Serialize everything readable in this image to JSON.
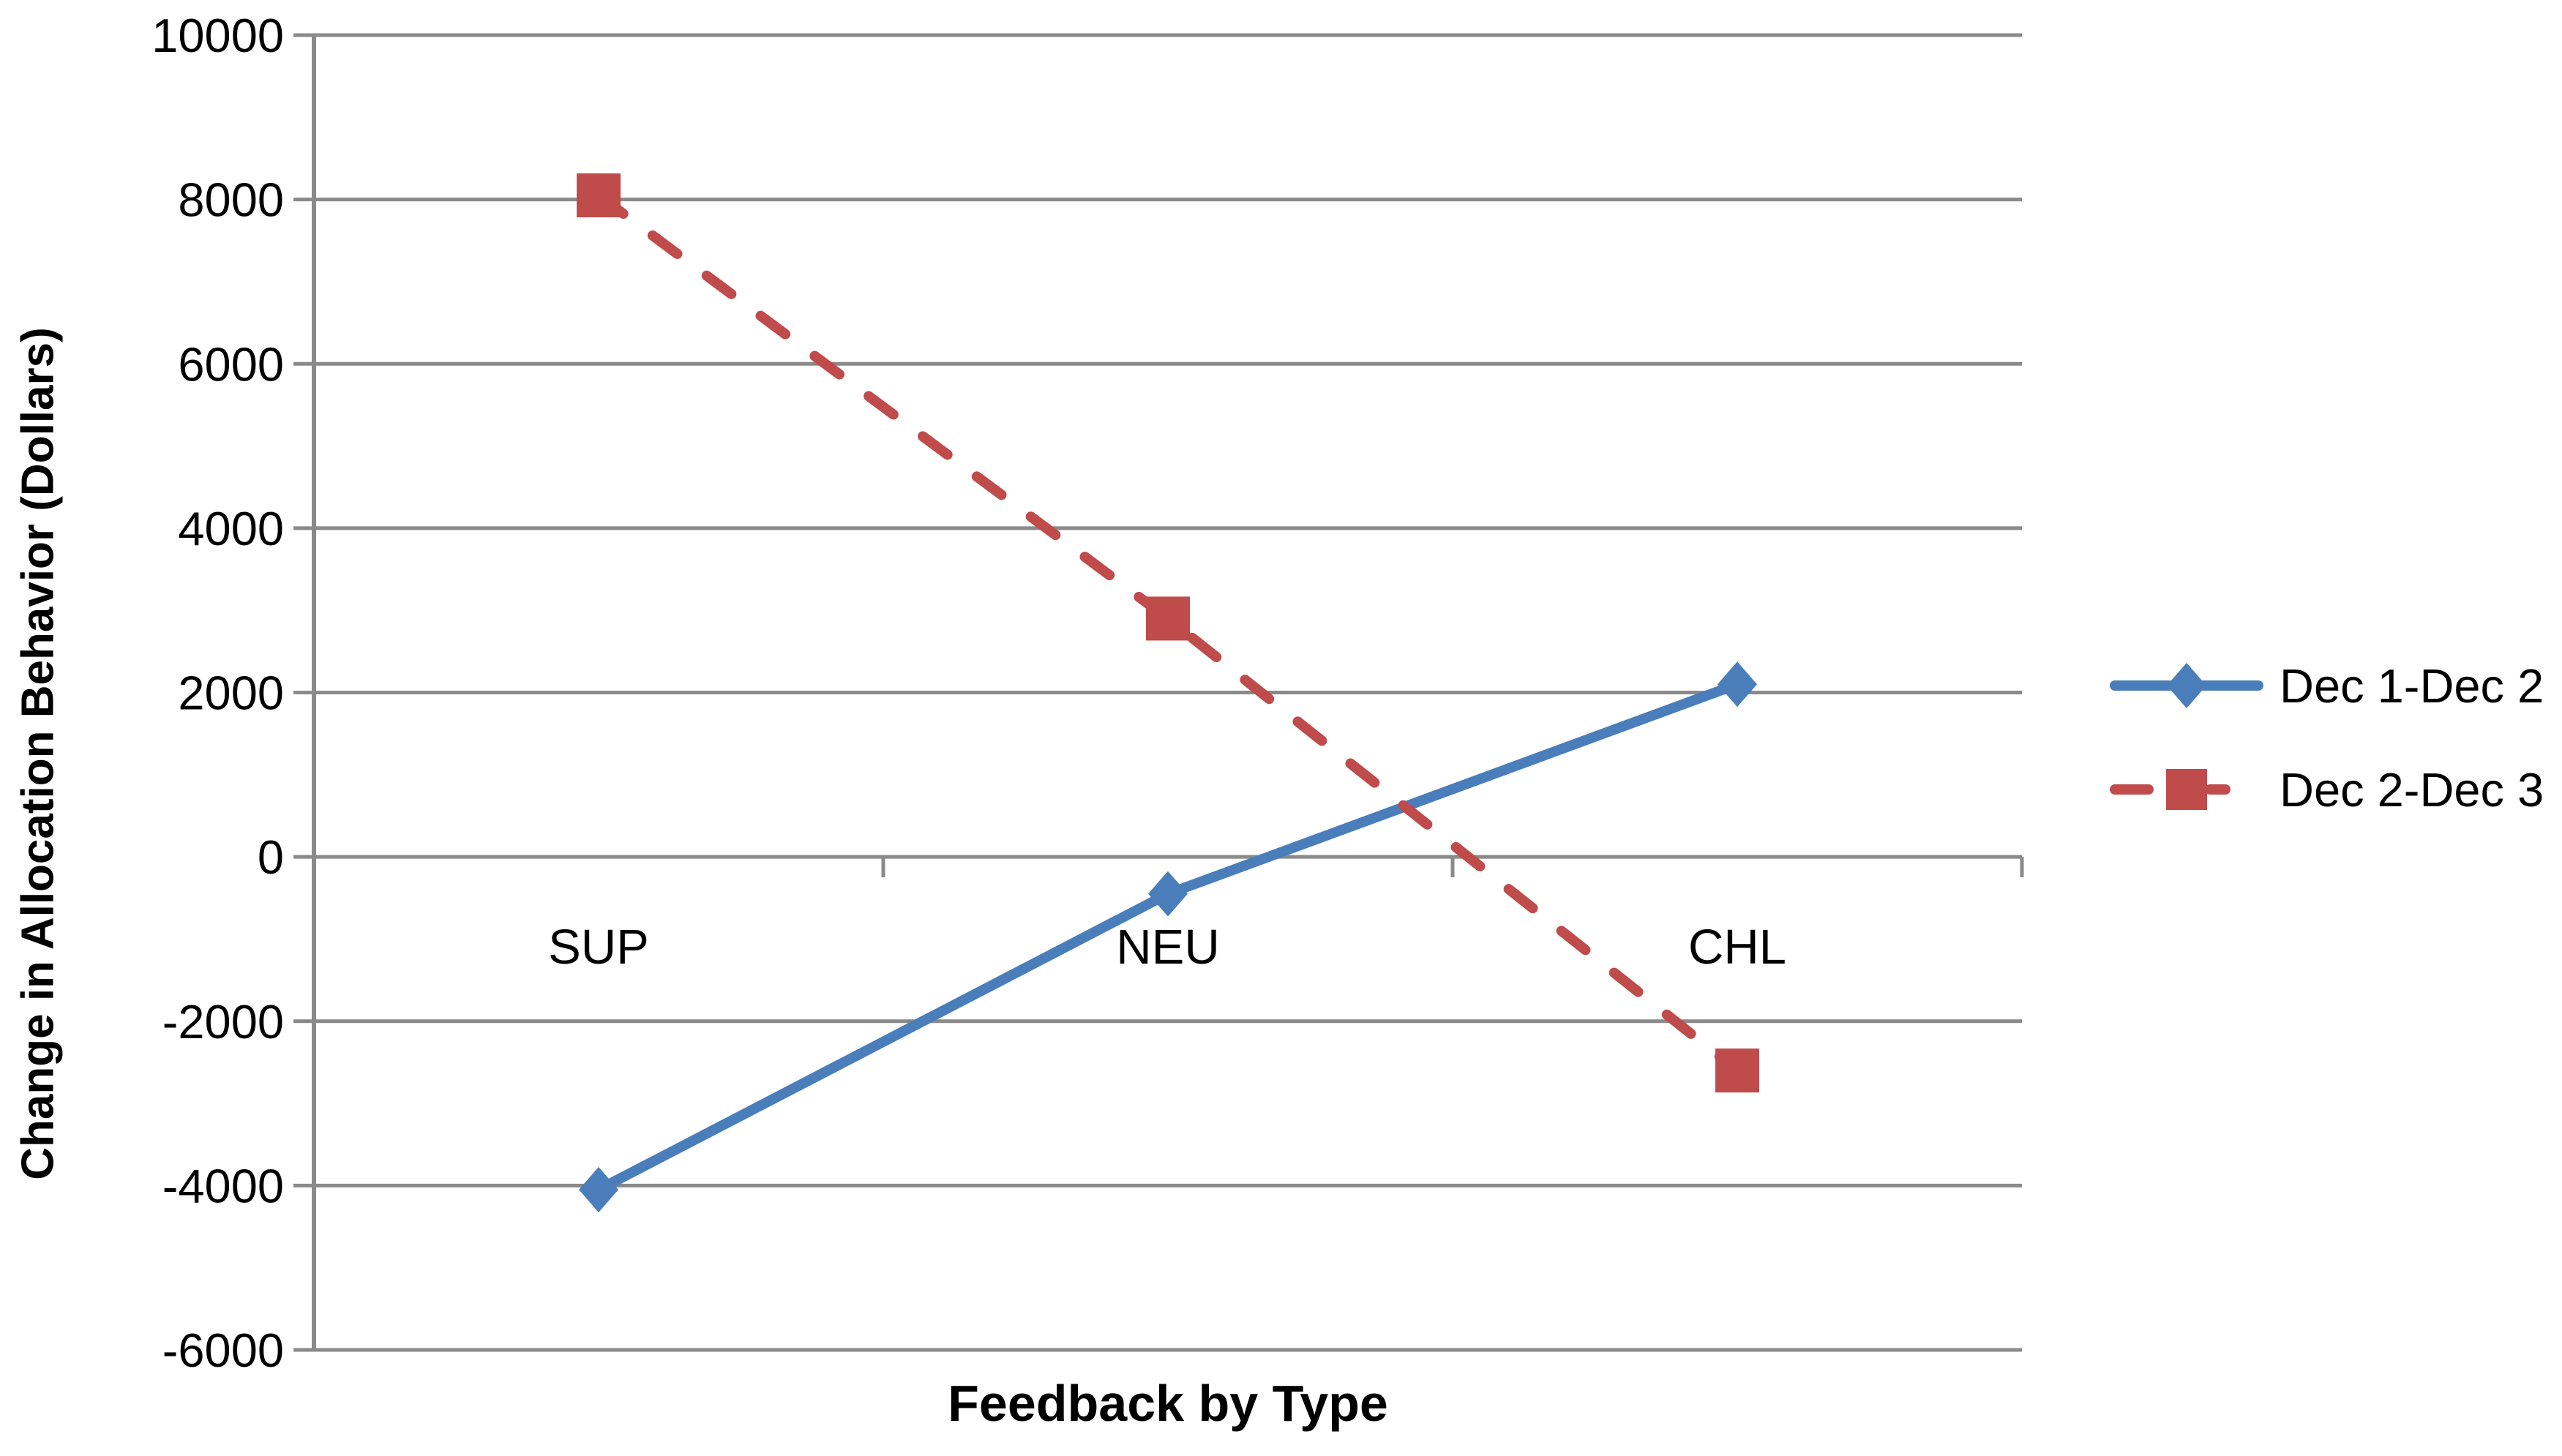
{
  "chart_data": {
    "type": "line",
    "title": "",
    "xlabel": "Feedback by Type",
    "ylabel": "Change in Allocation Behavior (Dollars)",
    "categories": [
      "SUP",
      "NEU",
      "CHL"
    ],
    "series": [
      {
        "name": "Dec 1-Dec 2",
        "values": [
          -4050,
          -450,
          2100
        ],
        "color": "#4A7EBB",
        "marker": "diamond",
        "line_style": "solid"
      },
      {
        "name": "Dec 2-Dec 3",
        "values": [
          8050,
          2900,
          -2600
        ],
        "color": "#BF4B4B",
        "marker": "square",
        "line_style": "dashed"
      }
    ],
    "ylim": [
      -6000,
      10000
    ],
    "ytick_step": 2000,
    "ytick_labels": [
      "10000",
      "8000",
      "6000",
      "4000",
      "2000",
      "0",
      "-2000",
      "-4000",
      "-6000"
    ],
    "grid": "horizontal-only",
    "legend_position": "middle-right",
    "gridline_color": "#8A8A8A",
    "axis_color": "#8A8A8A",
    "text_color": "#000000",
    "background": "#FFFFFF"
  }
}
